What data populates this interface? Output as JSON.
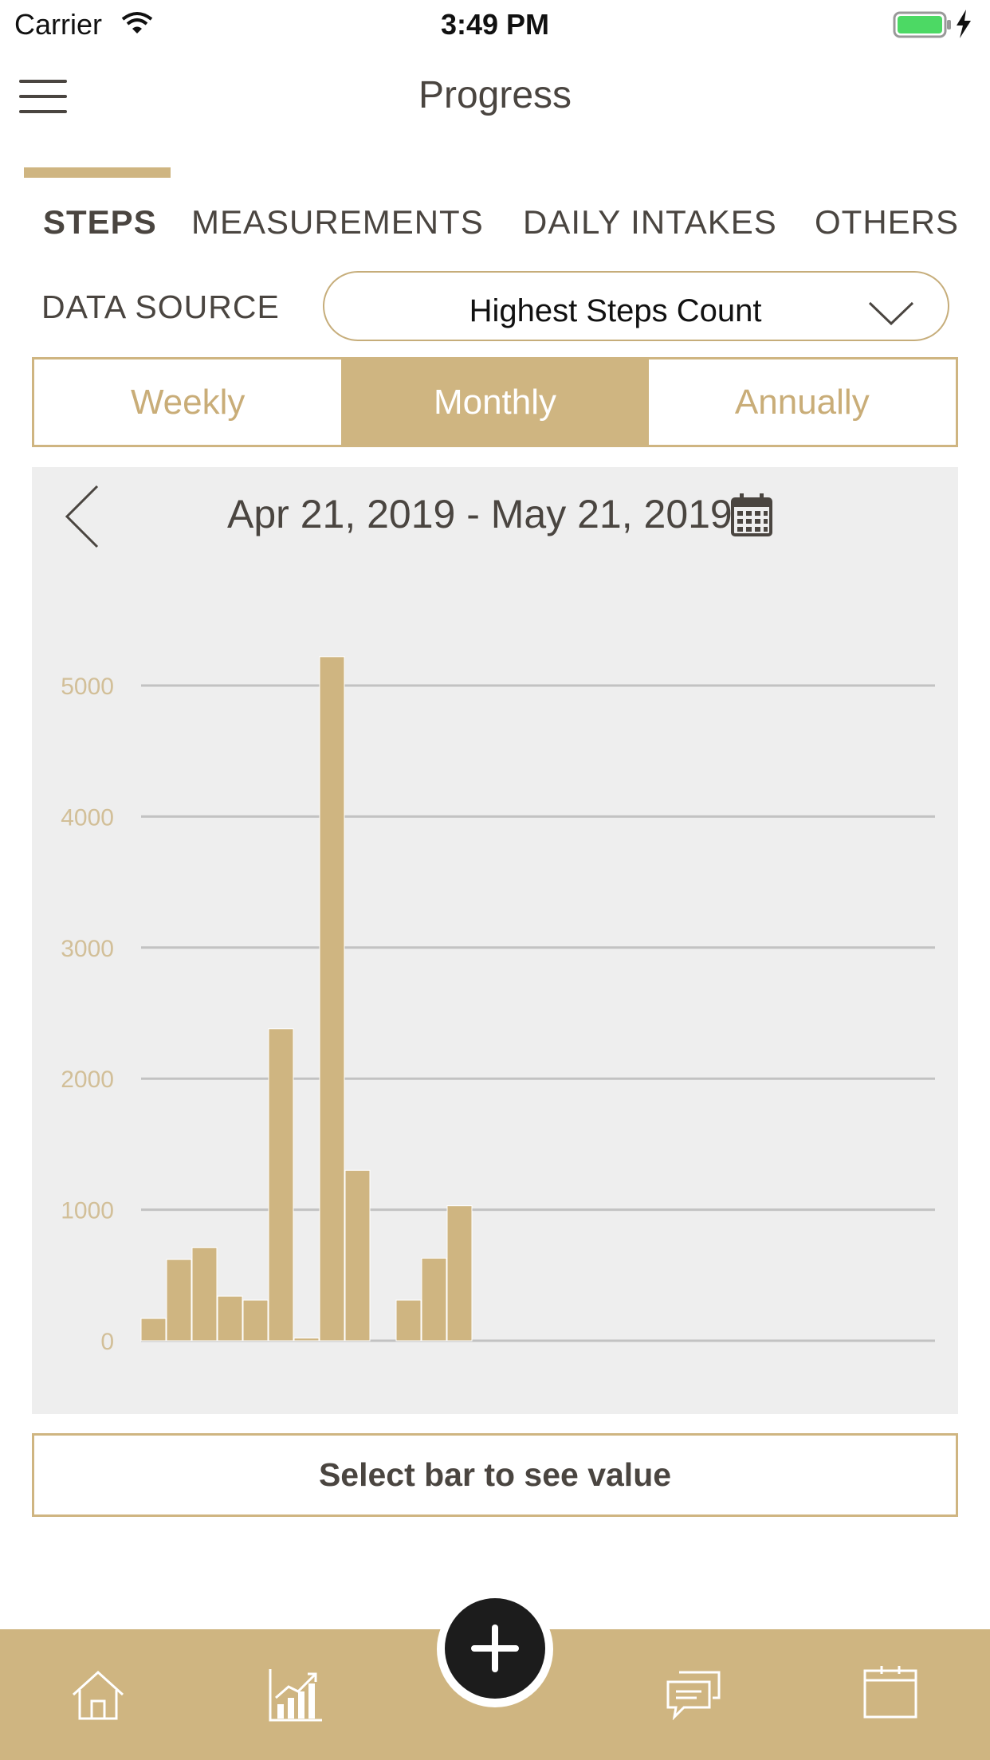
{
  "status_bar": {
    "carrier": "Carrier",
    "time": "3:49 PM"
  },
  "header": {
    "title": "Progress"
  },
  "tabs": [
    {
      "label": "STEPS",
      "active": true
    },
    {
      "label": "MEASUREMENTS",
      "active": false
    },
    {
      "label": "DAILY INTAKES",
      "active": false
    },
    {
      "label": "OTHERS",
      "active": false
    }
  ],
  "data_source": {
    "label": "DATA SOURCE",
    "selected": "Highest Steps Count"
  },
  "periods": [
    {
      "label": "Weekly",
      "active": false
    },
    {
      "label": "Monthly",
      "active": true
    },
    {
      "label": "Annually",
      "active": false
    }
  ],
  "date_range": "Apr 21, 2019 - May 21, 2019",
  "chart_data": {
    "type": "bar",
    "values": [
      170,
      620,
      710,
      340,
      310,
      2380,
      20,
      5220,
      1300,
      0,
      310,
      630,
      1030,
      0,
      0,
      0,
      0,
      0,
      0,
      0,
      0,
      0,
      0,
      0,
      0,
      0,
      0,
      0,
      0,
      0,
      0
    ],
    "yticks": [
      "0",
      "1000",
      "2000",
      "3000",
      "4000",
      "5000"
    ],
    "ylim": [
      0,
      5000
    ],
    "grid": true,
    "color": "#cfb581"
  },
  "value_box": {
    "text": "Select bar to see value"
  },
  "colors": {
    "accent": "#cfb581",
    "text": "#4a4540",
    "panel": "#eeeeee",
    "fab": "#1c1c1c"
  },
  "tab_bar": {
    "icons": [
      "home-icon",
      "chart-icon",
      "add-icon",
      "chat-icon",
      "calendar-icon"
    ]
  }
}
